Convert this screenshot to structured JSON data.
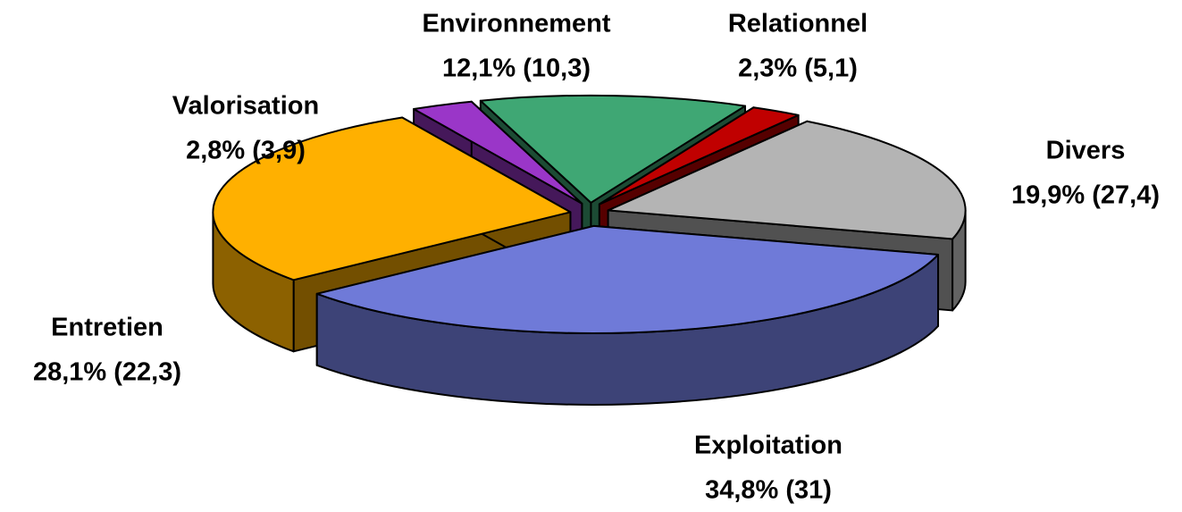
{
  "chart_data": {
    "type": "pie",
    "three_d": true,
    "exploded": true,
    "categories": [
      "Environnement",
      "Relationnel",
      "Divers",
      "Exploitation",
      "Entretien",
      "Valorisation"
    ],
    "values": [
      12.1,
      2.3,
      19.9,
      34.8,
      28.1,
      2.8
    ],
    "value_labels": [
      "12,1% (10,3)",
      "2,3% (5,1)",
      "19,9% (27,4)",
      "34,8% (31)",
      "28,1% (22,3)",
      "2,8% (3,9)"
    ],
    "colors": [
      "#3fa774",
      "#c00000",
      "#b4b4b4",
      "#6f7ad8",
      "#ffb000",
      "#9a36c8"
    ]
  }
}
